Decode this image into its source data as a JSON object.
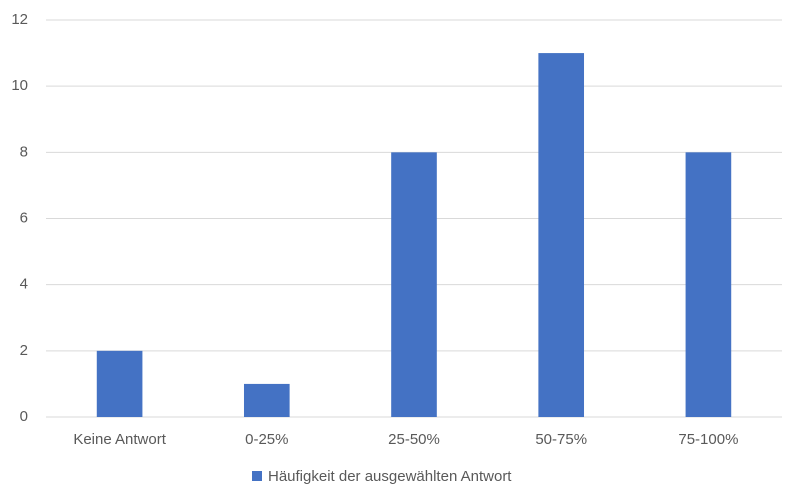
{
  "chart_data": {
    "type": "bar",
    "categories": [
      "Keine Antwort",
      "0-25%",
      "25-50%",
      "50-75%",
      "75-100%"
    ],
    "series": [
      {
        "name": "Häufigkeit der ausgewählten Antwort",
        "color": "#4472c4",
        "values": [
          2,
          1,
          8,
          11,
          8
        ]
      }
    ],
    "ylim": [
      0,
      12
    ],
    "yticks": [
      0,
      2,
      4,
      6,
      8,
      10,
      12
    ],
    "grid": true,
    "legend": "bottom"
  }
}
